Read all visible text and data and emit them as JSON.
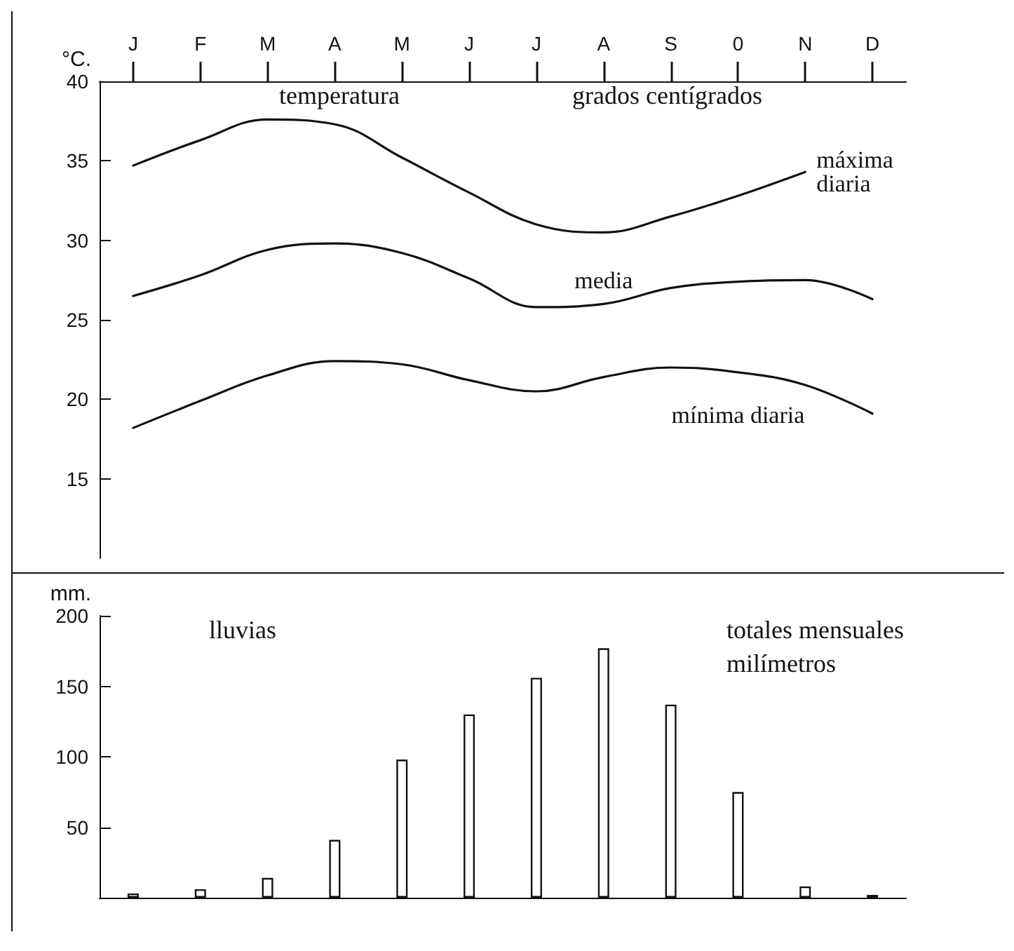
{
  "chart_data": [
    {
      "type": "line",
      "categories": [
        "J",
        "F",
        "M",
        "A",
        "M",
        "J",
        "J",
        "A",
        "S",
        "0",
        "N",
        "D"
      ],
      "ylabel": "°C.",
      "ylim": [
        10,
        40
      ],
      "yticks": [
        15,
        20,
        25,
        30,
        35,
        40
      ],
      "grid": false,
      "legend": false,
      "marker": "none",
      "line_style": "solid",
      "annotations": [
        "temperatura",
        "grados centígrados"
      ],
      "series": [
        {
          "name": "máxima diaria",
          "color": "#111111",
          "values": [
            34.7,
            36.3,
            37.6,
            37.3,
            35.2,
            33,
            31,
            30.5,
            31.5,
            32.8,
            34.3,
            null
          ]
        },
        {
          "name": "media",
          "color": "#111111",
          "values": [
            26.5,
            27.8,
            29.4,
            29.8,
            29.2,
            27.6,
            25.8,
            26,
            27,
            27.4,
            27.5,
            26.3
          ]
        },
        {
          "name": "mínima diaria",
          "color": "#111111",
          "values": [
            18.2,
            19.9,
            21.5,
            22.4,
            22.2,
            21.2,
            20.5,
            21.4,
            22,
            21.7,
            20.9,
            19.1
          ]
        }
      ]
    },
    {
      "type": "bar",
      "categories": [
        null,
        null,
        null,
        null,
        null,
        null,
        null,
        null,
        null,
        null,
        null,
        null
      ],
      "tick_labels": "y",
      "ylabel": "mm.",
      "ylim": [
        0,
        200
      ],
      "yticks": [
        50,
        100,
        150,
        200
      ],
      "grid": false,
      "annotations": [
        "lluvias",
        "totales mensuales milímetros"
      ],
      "color": "#ffffff",
      "values": [
        3,
        6,
        14,
        41,
        98,
        130,
        156,
        177,
        137,
        75,
        8,
        2
      ]
    }
  ]
}
